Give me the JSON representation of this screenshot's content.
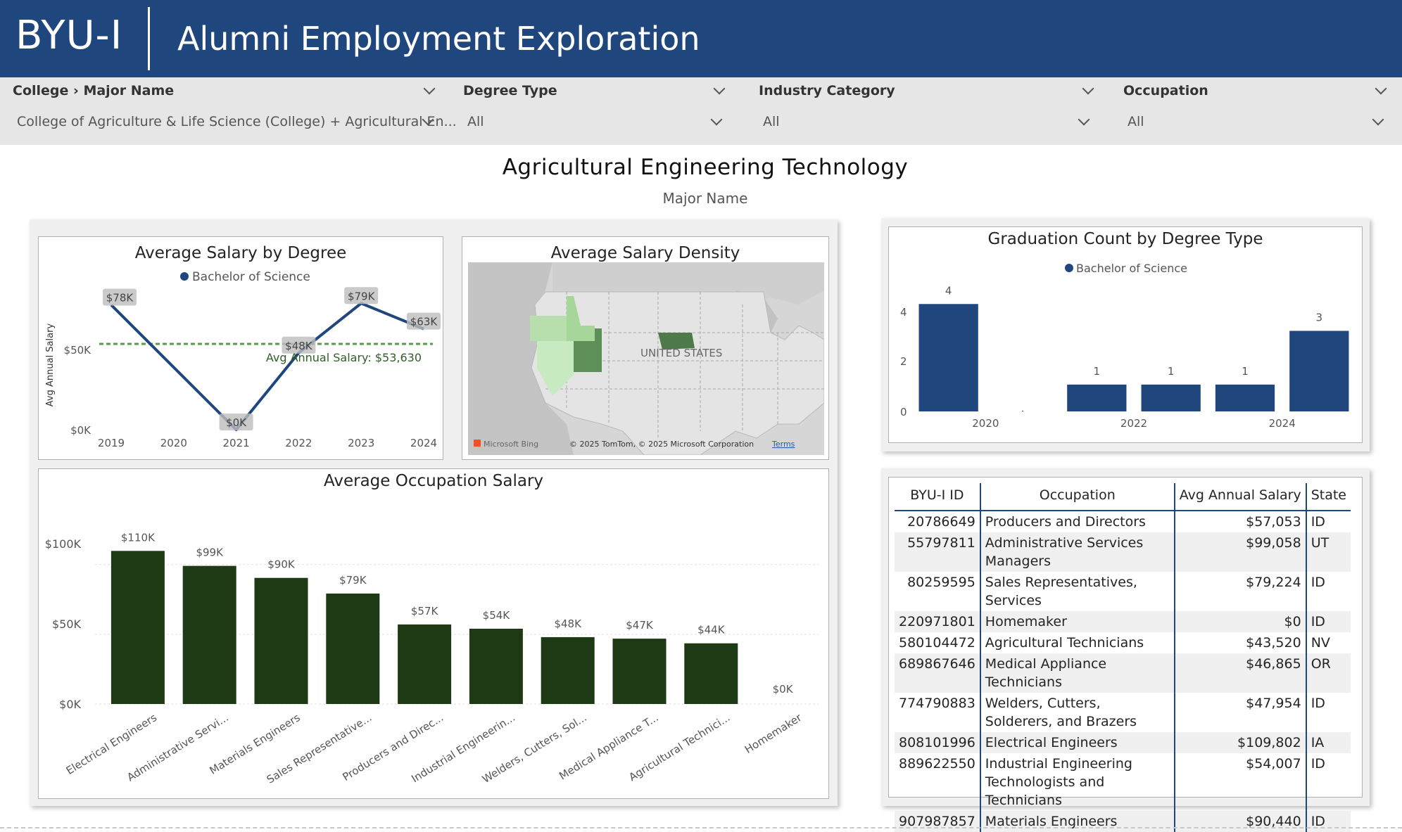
{
  "header": {
    "logo_text": "BYU-I",
    "title": "Alumni Employment Exploration"
  },
  "filters": [
    {
      "title": "College › Major Name",
      "value": "College of Agriculture & Life Science (College) + Agricultural En..."
    },
    {
      "title": "Degree Type",
      "value": "All"
    },
    {
      "title": "Industry Category",
      "value": "All"
    },
    {
      "title": "Occupation",
      "value": "All"
    }
  ],
  "report": {
    "title": "Agricultural Engineering Technology",
    "subtitle": "Major Name"
  },
  "salary_by_degree": {
    "title": "Average Salary by Degree",
    "legend": "Bachelor of Science",
    "ylabel": "Avg Annual Salary",
    "avg_line_label": "Avg Annual Salary: $53,630",
    "y_ticks": [
      "$0K",
      "$50K"
    ]
  },
  "density_map": {
    "title": "Average Salary Density",
    "country_label": "UNITED STATES",
    "bing_label": "Microsoft Bing",
    "copyright": "© 2025 TomTom, © 2025 Microsoft Corporation",
    "terms_label": "Terms"
  },
  "grad_count": {
    "title": "Graduation Count by Degree Type",
    "legend": "Bachelor of Science"
  },
  "occupation_salary": {
    "title": "Average Occupation Salary"
  },
  "table": {
    "headers": [
      "BYU-I ID",
      "Occupation",
      "Avg Annual Salary",
      "State"
    ],
    "rows": [
      {
        "id": "20786649",
        "occupation": "Producers and Directors",
        "salary": "$57,053",
        "state": "ID"
      },
      {
        "id": "55797811",
        "occupation": "Administrative Services Managers",
        "salary": "$99,058",
        "state": "UT"
      },
      {
        "id": "80259595",
        "occupation": "Sales Representatives, Services",
        "salary": "$79,224",
        "state": "ID"
      },
      {
        "id": "220971801",
        "occupation": "Homemaker",
        "salary": "$0",
        "state": "ID"
      },
      {
        "id": "580104472",
        "occupation": "Agricultural Technicians",
        "salary": "$43,520",
        "state": "NV"
      },
      {
        "id": "689867646",
        "occupation": "Medical Appliance Technicians",
        "salary": "$46,865",
        "state": "OR"
      },
      {
        "id": "774790883",
        "occupation": "Welders, Cutters, Solderers, and Brazers",
        "salary": "$47,954",
        "state": "ID"
      },
      {
        "id": "808101996",
        "occupation": "Electrical Engineers",
        "salary": "$109,802",
        "state": "IA"
      },
      {
        "id": "889622550",
        "occupation": "Industrial Engineering Technologists and Technicians",
        "salary": "$54,007",
        "state": "ID"
      },
      {
        "id": "907987857",
        "occupation": "Materials Engineers",
        "salary": "$90,440",
        "state": "ID"
      }
    ]
  },
  "colors": {
    "header": "#1f467d",
    "line": "#1f467d",
    "bar_dark": "#1e3a14",
    "bar_blue": "#1f467d",
    "avg_line": "#5a9a4e"
  },
  "chart_data": [
    {
      "type": "line",
      "title": "Average Salary by Degree",
      "x": [
        "2019",
        "2020",
        "2021",
        "2022",
        "2023",
        "2024"
      ],
      "series": [
        {
          "name": "Bachelor of Science",
          "values": [
            78000,
            null,
            0,
            48000,
            79000,
            63000
          ]
        }
      ],
      "data_labels": [
        "$78K",
        "",
        "$0K",
        "$48K",
        "$79K",
        "$63K"
      ],
      "ylabel": "Avg Annual Salary",
      "ylim": [
        0,
        80000
      ],
      "reference_line": {
        "label": "Avg Annual Salary: $53,630",
        "value": 53630
      }
    },
    {
      "type": "bar",
      "title": "Graduation Count by Degree Type",
      "categories": [
        "2019",
        "2020",
        "2021",
        "2022",
        "2023",
        "2024"
      ],
      "tick_labels": [
        "",
        "2020",
        "",
        "2022",
        "",
        "2024"
      ],
      "series": [
        {
          "name": "Bachelor of Science",
          "values": [
            4,
            0,
            1,
            1,
            1,
            3
          ]
        }
      ],
      "data_labels": [
        "4",
        "",
        "1",
        "1",
        "1",
        "3"
      ],
      "y_ticks": [
        "0",
        "2",
        "4"
      ],
      "ylim": [
        0,
        4.4
      ]
    },
    {
      "type": "bar",
      "title": "Average Occupation Salary",
      "categories": [
        "Electrical Engineers",
        "Administrative Servi...",
        "Materials Engineers",
        "Sales Representative...",
        "Producers and Direc...",
        "Industrial Engineerin...",
        "Welders, Cutters, Sol...",
        "Medical Appliance T...",
        "Agricultural Technici...",
        "Homemaker"
      ],
      "values": [
        109802,
        99058,
        90440,
        79224,
        57053,
        54007,
        47954,
        46865,
        43520,
        0
      ],
      "data_labels": [
        "$110K",
        "$99K",
        "$90K",
        "$79K",
        "$57K",
        "$54K",
        "$48K",
        "$47K",
        "$44K",
        "$0K"
      ],
      "y_ticks": [
        "$0K",
        "$50K",
        "$100K"
      ],
      "ylim": [
        0,
        115000
      ]
    }
  ]
}
